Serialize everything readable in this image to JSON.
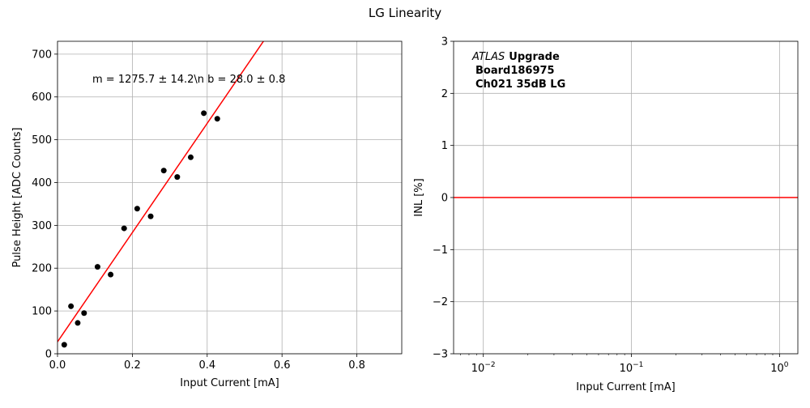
{
  "figure": {
    "title": "LG Linearity"
  },
  "chart_data": [
    {
      "type": "scatter",
      "xlabel": "Input Current [mA]",
      "ylabel": "Pulse Height [ADC Counts]",
      "xlim": [
        0.0,
        0.92
      ],
      "ylim": [
        0,
        730
      ],
      "xticks": [
        0.0,
        0.2,
        0.4,
        0.6,
        0.8
      ],
      "xtick_labels": [
        "0.0",
        "0.2",
        "0.4",
        "0.6",
        "0.8"
      ],
      "yticks": [
        0,
        100,
        200,
        300,
        400,
        500,
        600,
        700
      ],
      "ytick_labels": [
        "0",
        "100",
        "200",
        "300",
        "400",
        "500",
        "600",
        "700"
      ],
      "grid": true,
      "series": [
        {
          "kind": "points",
          "color": "#000000",
          "x": [
            0.018,
            0.036,
            0.054,
            0.071,
            0.107,
            0.142,
            0.178,
            0.213,
            0.249,
            0.284,
            0.32,
            0.356,
            0.391,
            0.427
          ],
          "y": [
            21,
            111,
            72,
            95,
            203,
            185,
            293,
            339,
            321,
            428,
            413,
            459,
            562,
            549
          ]
        },
        {
          "kind": "fit-line",
          "color": "#ff0000",
          "slope": 1275.7,
          "intercept": 28.0
        }
      ],
      "annotation": "m = 1275.7 ± 14.2\\n b = 28.0 ± 0.8"
    },
    {
      "type": "line",
      "xlabel": "Input Current [mA]",
      "ylabel": "INL [%]",
      "xscale": "log",
      "xlim": [
        0.0063,
        1.33
      ],
      "ylim": [
        -3,
        3
      ],
      "xticks": [
        0.01,
        0.1,
        1
      ],
      "xtick_labels": [
        "10^{-2}",
        "10^{-1}",
        "10^{0}"
      ],
      "yticks": [
        -3,
        -2,
        -1,
        0,
        1,
        2,
        3
      ],
      "ytick_labels": [
        "−3",
        "−2",
        "−1",
        "0",
        "1",
        "2",
        "3"
      ],
      "grid": true,
      "series": [
        {
          "kind": "hline",
          "color": "#ff0000",
          "y": 0
        }
      ],
      "label_lines": [
        {
          "italic": "ATLAS",
          "bold": "Upgrade"
        },
        {
          "bold": "Board186975"
        },
        {
          "bold": "Ch021 35dB LG"
        }
      ]
    }
  ]
}
